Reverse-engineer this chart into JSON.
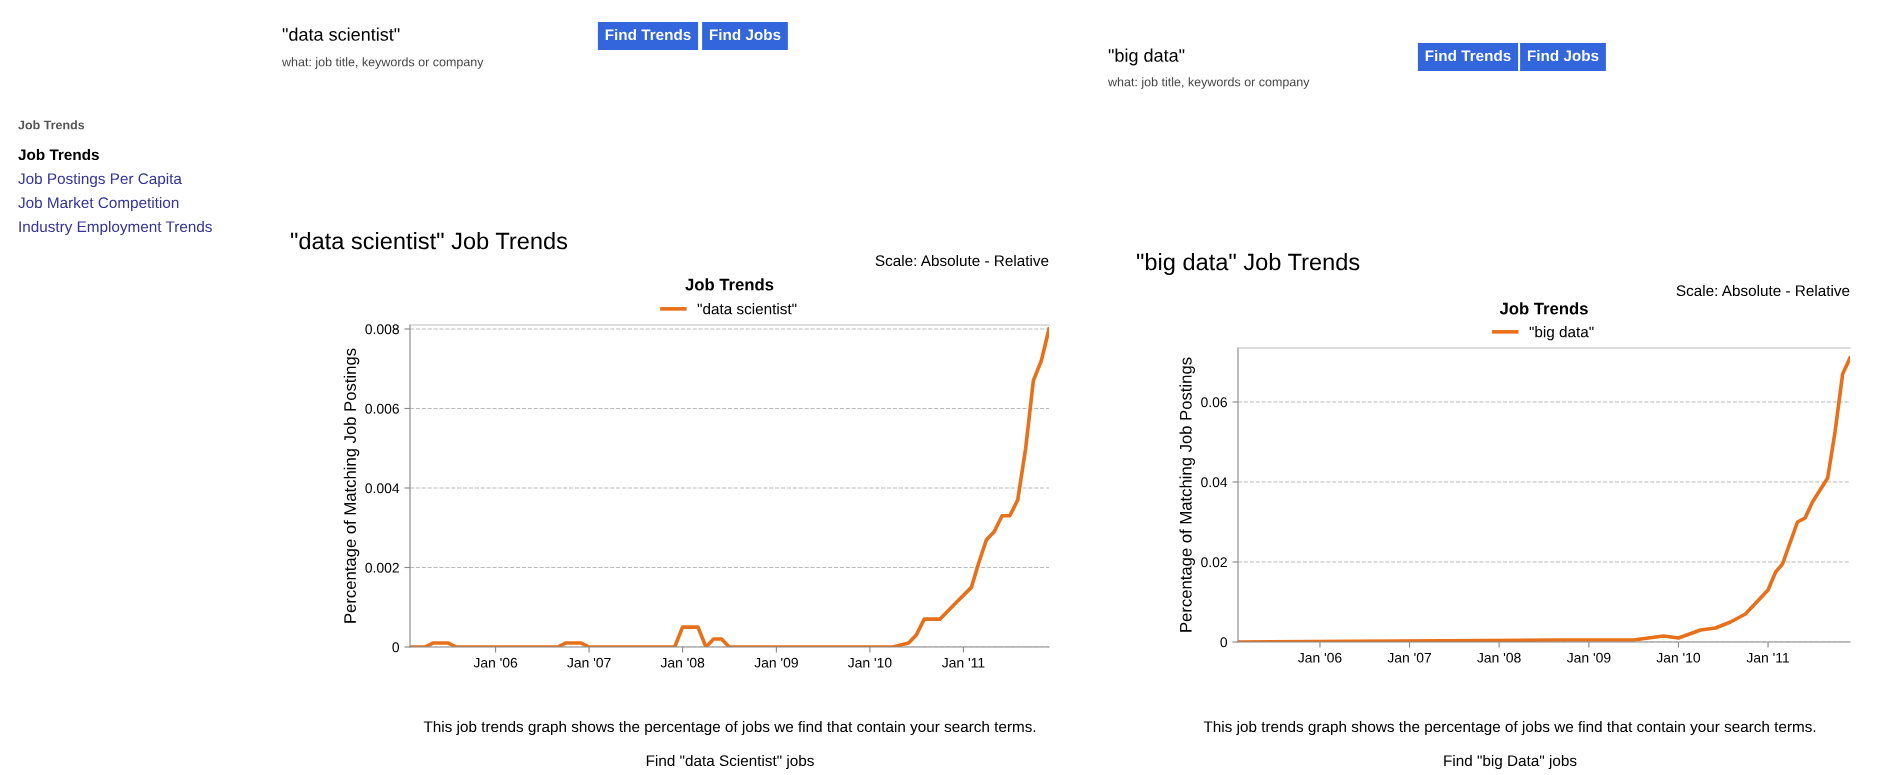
{
  "chart_data": [
    {
      "type": "line",
      "title": "\"data scientist\" Job Trends",
      "subtitle": "Job Trends",
      "ylabel": "Percentage of Matching Job Postings",
      "annotations": [
        "\"data scientist\"",
        "Find Trends",
        "Find Jobs",
        "what: job title, keywords or company",
        "Job Trends",
        "Job Trends",
        "Job Postings Per Capita",
        "Job Market Competition",
        "Industry Employment Trends",
        "Scale: Absolute - Relative",
        "This job trends graph shows the percentage of jobs we find that contain your search terms.",
        "Find \"data Scientist\" jobs"
      ],
      "series": [
        {
          "name": "\"data scientist\"",
          "color": "#e8701a",
          "x": [
            "2005-02",
            "2005-04",
            "2005-05",
            "2005-07",
            "2005-08",
            "2006-09",
            "2006-10",
            "2006-12",
            "2007-01",
            "2007-12",
            "2008-01",
            "2008-03",
            "2008-04",
            "2008-05",
            "2008-06",
            "2008-07",
            "2010-04",
            "2010-06",
            "2010-07",
            "2010-08",
            "2010-10",
            "2010-12",
            "2011-02",
            "2011-03",
            "2011-04",
            "2011-05",
            "2011-06",
            "2011-07",
            "2011-08",
            "2011-09",
            "2011-10",
            "2011-11",
            "2011-12"
          ],
          "values": [
            0,
            0,
            0.0001,
            0.0001,
            0,
            0,
            0.0001,
            0.0001,
            0,
            0,
            0.0005,
            0.0005,
            0,
            0.0002,
            0.0002,
            0,
            0,
            0.0001,
            0.0003,
            0.0007,
            0.0007,
            0.0011,
            0.0015,
            0.0021,
            0.0027,
            0.0029,
            0.0033,
            0.0033,
            0.0037,
            0.005,
            0.0067,
            0.0072,
            0.008
          ]
        }
      ],
      "xlim": [
        "2005-02",
        "2011-12-15"
      ],
      "ylim": [
        0,
        0.0081
      ],
      "xticks": [
        {
          "value": "2006-01",
          "label": "Jan '06"
        },
        {
          "value": "2007-01",
          "label": "Jan '07"
        },
        {
          "value": "2008-01",
          "label": "Jan '08"
        },
        {
          "value": "2009-01",
          "label": "Jan '09"
        },
        {
          "value": "2010-01",
          "label": "Jan '10"
        },
        {
          "value": "2011-01",
          "label": "Jan '11"
        }
      ],
      "yticks": [
        0,
        0.002,
        0.004,
        0.006,
        0.008
      ],
      "grid": "y",
      "legend": "top",
      "marker": "none",
      "line_style": "solid"
    },
    {
      "type": "line",
      "title": "\"big data\" Job Trends",
      "subtitle": "Job Trends",
      "ylabel": "Percentage of Matching Job Postings",
      "annotations": [
        "\"big data\"",
        "Find Trends",
        "Find Jobs",
        "what: job title, keywords or company",
        "Scale: Absolute - Relative",
        "This job trends graph shows the percentage of jobs we find that contain your search terms.",
        "Find \"big Data\" jobs"
      ],
      "series": [
        {
          "name": "\"big data\"",
          "color": "#e8701a",
          "x": [
            "2005-02",
            "2006-06",
            "2008-09",
            "2009-07",
            "2009-11",
            "2010-01",
            "2010-04",
            "2010-06",
            "2010-08",
            "2010-10",
            "2011-01",
            "2011-02",
            "2011-03",
            "2011-05",
            "2011-06",
            "2011-07",
            "2011-08",
            "2011-09",
            "2011-10",
            "2011-11",
            "2011-12"
          ],
          "values": [
            0,
            0.0002,
            0.0005,
            0.0005,
            0.0015,
            0.001,
            0.003,
            0.0035,
            0.005,
            0.007,
            0.013,
            0.0175,
            0.0195,
            0.03,
            0.031,
            0.035,
            0.038,
            0.041,
            0.0525,
            0.067,
            0.071
          ]
        }
      ],
      "xlim": [
        "2005-02",
        "2011-12-15"
      ],
      "ylim": [
        0,
        0.0735
      ],
      "xticks": [
        {
          "value": "2006-01",
          "label": "Jan '06"
        },
        {
          "value": "2007-01",
          "label": "Jan '07"
        },
        {
          "value": "2008-01",
          "label": "Jan '08"
        },
        {
          "value": "2009-01",
          "label": "Jan '09"
        },
        {
          "value": "2010-01",
          "label": "Jan '10"
        },
        {
          "value": "2011-01",
          "label": "Jan '11"
        }
      ],
      "yticks": [
        0,
        0.02,
        0.04,
        0.06
      ],
      "grid": "y",
      "legend": "top",
      "marker": "none",
      "line_style": "solid"
    }
  ]
}
